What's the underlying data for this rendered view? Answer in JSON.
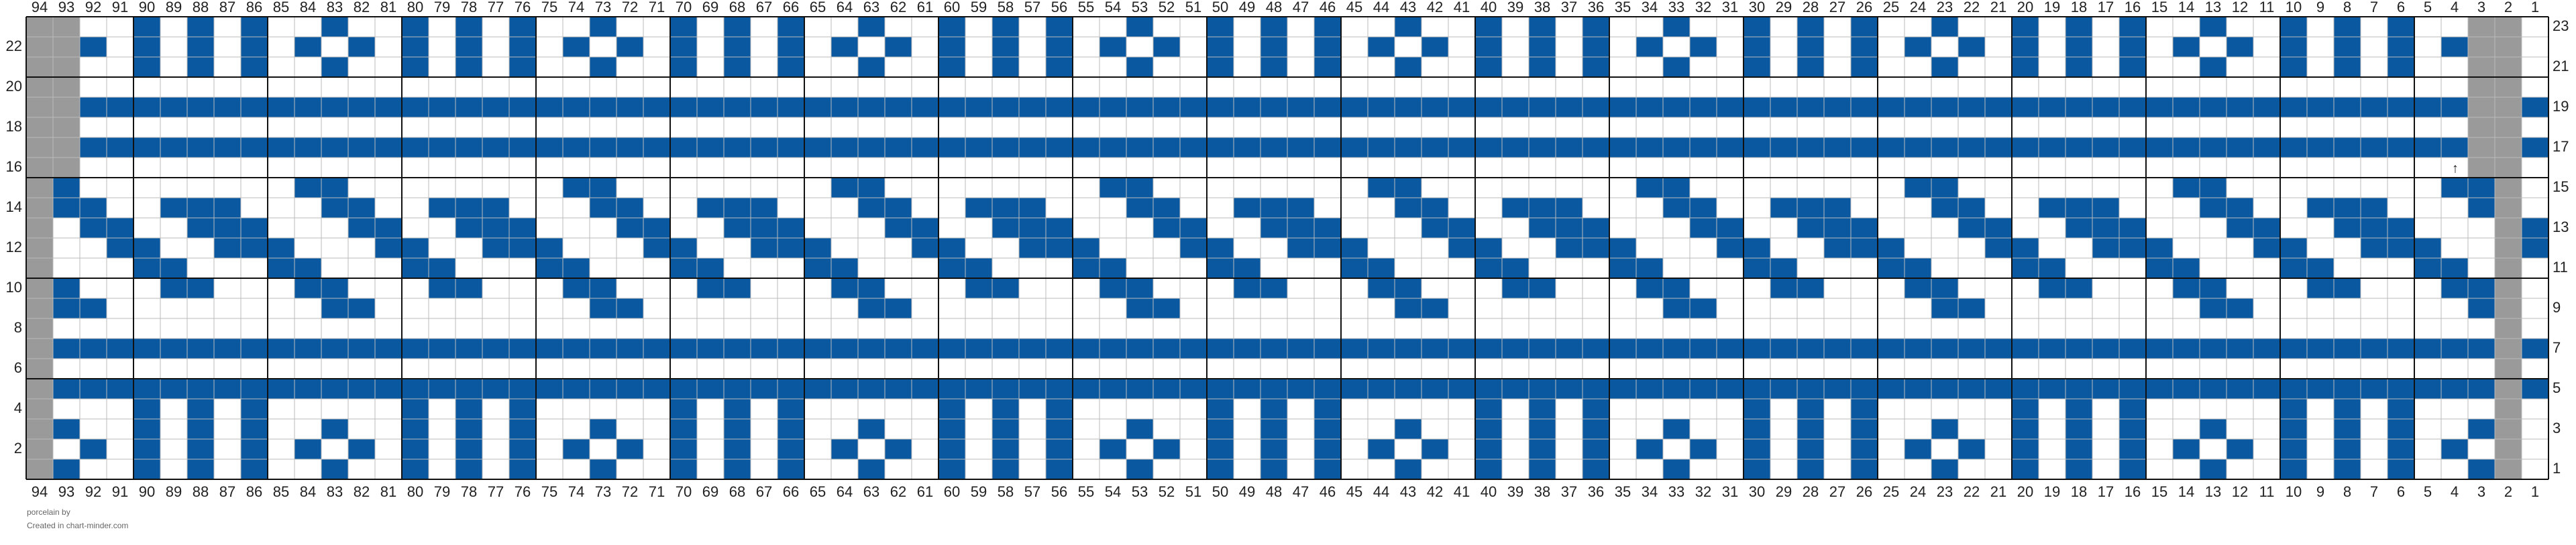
{
  "columns": [
    94,
    93,
    92,
    91,
    90,
    89,
    88,
    87,
    86,
    85,
    84,
    83,
    82,
    81,
    80,
    79,
    78,
    77,
    76,
    75,
    74,
    73,
    72,
    71,
    70,
    69,
    68,
    67,
    66,
    65,
    64,
    63,
    62,
    61,
    60,
    59,
    58,
    57,
    56,
    55,
    54,
    53,
    52,
    51,
    50,
    49,
    48,
    47,
    46,
    45,
    44,
    43,
    42,
    41,
    40,
    39,
    38,
    37,
    36,
    35,
    34,
    33,
    32,
    31,
    30,
    29,
    28,
    27,
    26,
    25,
    24,
    23,
    22,
    21,
    20,
    19,
    18,
    17,
    16,
    15,
    14,
    13,
    12,
    11,
    10,
    9,
    8,
    7,
    6,
    5,
    4,
    3,
    2,
    1
  ],
  "rows_left": [
    22,
    20,
    18,
    16,
    14,
    12,
    10,
    8,
    6,
    4,
    2
  ],
  "rows_right": [
    23,
    21,
    19,
    17,
    15,
    13,
    11,
    9,
    7,
    5,
    3,
    1
  ],
  "footer": {
    "pattern": "porcelain by",
    "credit": "Created in chart-minder.com"
  }
}
